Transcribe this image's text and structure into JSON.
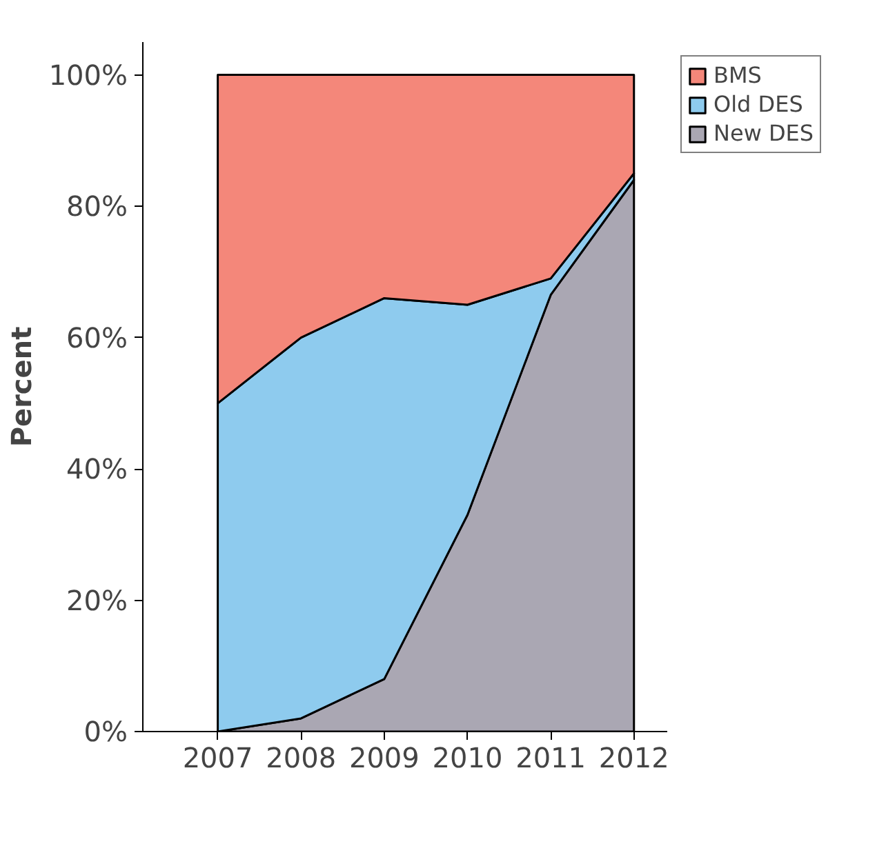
{
  "chart_data": {
    "type": "area",
    "stacked": true,
    "ylabel": "Percent",
    "x": [
      2007,
      2008,
      2009,
      2010,
      2011,
      2012
    ],
    "series": [
      {
        "name": "New DES",
        "color": "#aaa7b3",
        "values": [
          0,
          2,
          8,
          33,
          66.5,
          84
        ]
      },
      {
        "name": "Old DES",
        "color": "#8ecbee",
        "values": [
          50,
          58,
          58,
          32,
          2.5,
          1
        ]
      },
      {
        "name": "BMS",
        "color": "#f4877a",
        "values": [
          50,
          40,
          34,
          35,
          31,
          15
        ]
      }
    ],
    "xlim": [
      2006.1,
      2012.4
    ],
    "xticks": [
      2007,
      2008,
      2009,
      2010,
      2011,
      2012
    ],
    "ylim": [
      0,
      105
    ],
    "yticks": [
      {
        "value": 0,
        "label": "0%"
      },
      {
        "value": 20,
        "label": "20%"
      },
      {
        "value": 40,
        "label": "40%"
      },
      {
        "value": 60,
        "label": "60%"
      },
      {
        "value": 80,
        "label": "80%"
      },
      {
        "value": 100,
        "label": "100%"
      }
    ],
    "grid": false,
    "legend": "top right"
  }
}
